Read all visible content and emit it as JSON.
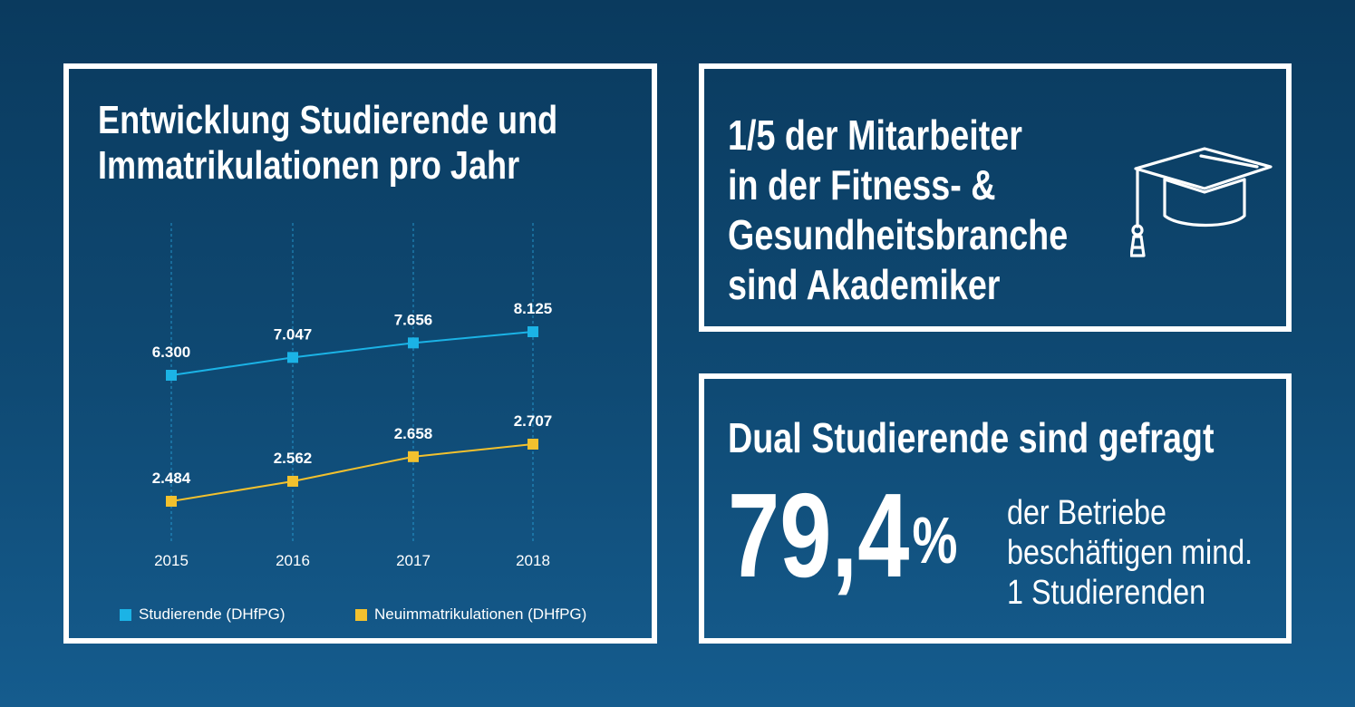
{
  "colors": {
    "studierende": "#1bb3e6",
    "neuimmatrikulationen": "#f2c12e",
    "frame": "#ffffff"
  },
  "chart_data": {
    "type": "line",
    "title": "Entwicklung Studierende und Immatrikulationen pro Jahr",
    "title_lines": [
      "Entwicklung Studierende und",
      "Immatrikulationen pro Jahr"
    ],
    "categories": [
      "2015",
      "2016",
      "2017",
      "2018"
    ],
    "series": [
      {
        "name": "Studierende (DHfPG)",
        "values": [
          6300,
          7047,
          7656,
          8125
        ],
        "labels": [
          "6.300",
          "7.047",
          "7.656",
          "8.125"
        ]
      },
      {
        "name": "Neuimmatrikulationen (DHfPG)",
        "values": [
          2484,
          2562,
          2658,
          2707
        ],
        "labels": [
          "2.484",
          "2.562",
          "2.658",
          "2.707"
        ]
      }
    ],
    "xlabel": "",
    "ylabel": "",
    "grid": "vertical dashed",
    "legend_position": "bottom"
  },
  "fact": {
    "lines": [
      "1/5 der Mitarbeiter",
      "in der Fitness- &",
      "Gesundheitsbranche",
      "sind Akademiker"
    ],
    "icon": "graduation-cap-icon"
  },
  "dual": {
    "title": "Dual Studierende sind gefragt",
    "number": "79,4",
    "percent": "%",
    "sub_lines": [
      "der Betriebe",
      "beschäftigen mind.",
      "1 Studierenden"
    ]
  }
}
